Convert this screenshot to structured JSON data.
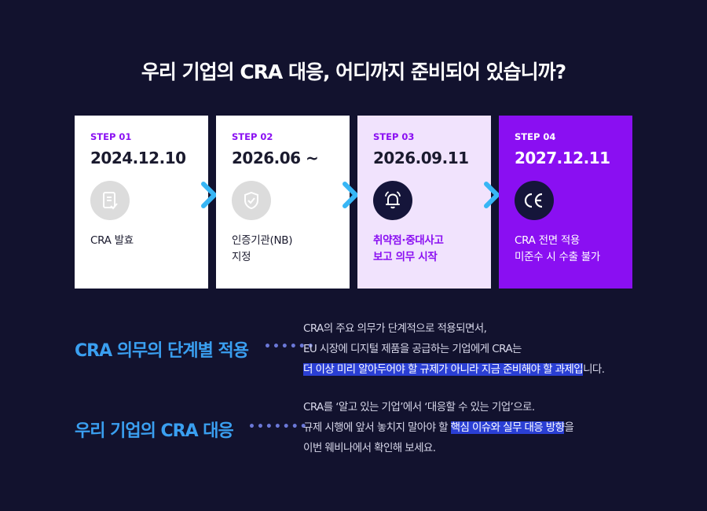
{
  "headline": "우리 기업의 CRA 대응, 어디까지 준비되어 있습니까?",
  "steps": [
    {
      "step": "STEP 01",
      "date": "2024.12.10",
      "icon": "document-check-icon",
      "text": "CRA 발효"
    },
    {
      "step": "STEP 02",
      "date": "2026.06 ~",
      "icon": "shield-check-icon",
      "text": "인증기관(NB)\n지정"
    },
    {
      "step": "STEP 03",
      "date": "2026.09.11",
      "icon": "bell-alert-icon",
      "text": "취약점·중대사고\n보고 의무 시작"
    },
    {
      "step": "STEP 04",
      "date": "2027.12.11",
      "icon": "ce-mark-icon",
      "text": "CRA 전면 적용\n미준수 시 수출 불가"
    }
  ],
  "rows": [
    {
      "title": "CRA 의무의 단계별 적용",
      "dots": "••••••",
      "line1": "CRA의 주요 의무가 단계적으로 적용되면서,",
      "line2": "EU 시장에 디지털 제품을 공급하는 기업에게 CRA는",
      "line3_highlight": "더 이상 미리 알아두어야 할 규제가 아니라 지금 준비해야 할 과제입",
      "line3_rest": "니다."
    },
    {
      "title": "우리 기업의 CRA 대응",
      "dots": "•••••••",
      "line1": "CRA를 ‘알고 있는 기업’에서 ‘대응할 수 있는 기업’으로.",
      "line2_pre": "규제 시행에 앞서 놓치지 말아야 할 ",
      "line2_highlight": "핵심 이슈와 실무 대응 방향",
      "line2_post": "을",
      "line3": "이번 웨비나에서 확인해 보세요."
    }
  ],
  "colors": {
    "background": "#12122e",
    "accent_purple": "#8a0ff2",
    "accent_blue": "#3a9ff0",
    "highlight": "#2a3fd4"
  }
}
